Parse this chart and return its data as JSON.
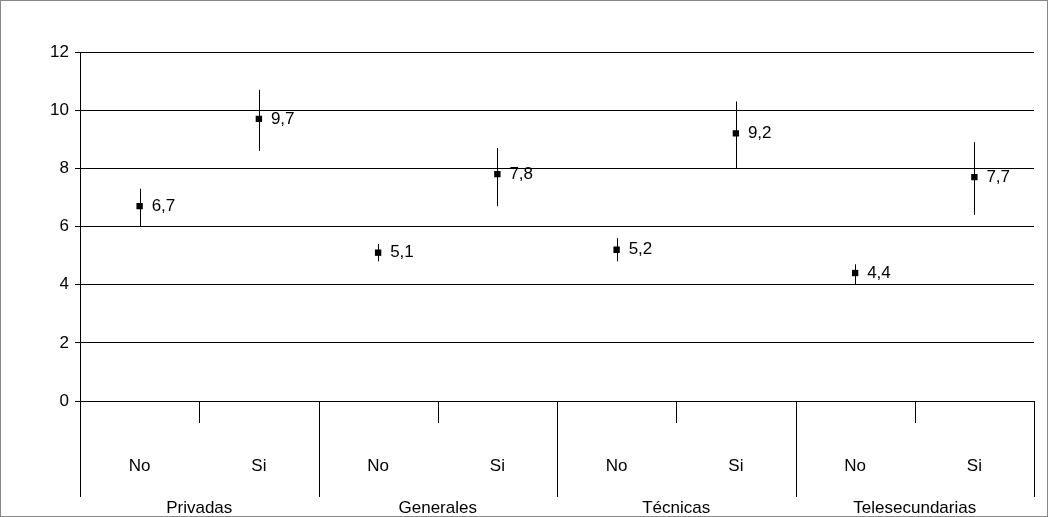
{
  "chart_data": {
    "type": "scatter",
    "categories": [
      "No",
      "Si",
      "No",
      "Si",
      "No",
      "Si",
      "No",
      "Si"
    ],
    "values": [
      6.7,
      9.7,
      5.1,
      7.8,
      5.2,
      9.2,
      4.4,
      7.7
    ],
    "value_labels": [
      "6,7",
      "9,7",
      "5,1",
      "7,8",
      "5,2",
      "9,2",
      "4,4",
      "7,7"
    ],
    "errors": [
      [
        6.0,
        7.3
      ],
      [
        8.6,
        10.7
      ],
      [
        4.8,
        5.4
      ],
      [
        6.7,
        8.7
      ],
      [
        4.8,
        5.6
      ],
      [
        8.0,
        10.3
      ],
      [
        4.0,
        4.7
      ],
      [
        6.4,
        8.9
      ]
    ],
    "color": "#000000",
    "marker": "square",
    "ylim": [
      0,
      12
    ],
    "yticks": [
      0,
      2,
      4,
      6,
      8,
      10,
      12
    ],
    "grid": "y",
    "legend": false,
    "annotations": [
      "Privadas",
      "Generales",
      "Técnicas",
      "Telesecundarias"
    ]
  }
}
